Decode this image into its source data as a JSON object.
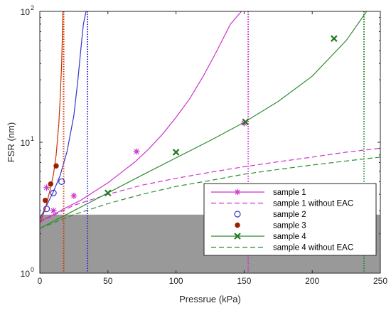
{
  "chart_data": {
    "type": "line",
    "title": "",
    "xlabel": "Pressrue (kPa)",
    "ylabel": "FSR (nm)",
    "xlim": [
      0,
      250
    ],
    "ylim": [
      1,
      100
    ],
    "yscale": "log",
    "grid": false,
    "legend_placement": "lower-right",
    "x_ticks": [
      0,
      50,
      100,
      150,
      200,
      250
    ],
    "x_tick_labels": [
      "0",
      "50",
      "100",
      "150",
      "200",
      "250"
    ],
    "y_ticks": [
      1,
      10,
      100
    ],
    "y_tick_labels": [
      "10",
      "10",
      "10"
    ],
    "y_tick_exponents": [
      "0",
      "1",
      "2"
    ],
    "shaded_band": {
      "y_from": 1,
      "y_to": 2.8,
      "color": "#999999"
    },
    "series": [
      {
        "name": "sample 1",
        "kind": "line",
        "color": "#cc33cc",
        "x": [
          0,
          10,
          20,
          30,
          40,
          50,
          60,
          70,
          80,
          90,
          100,
          110,
          120,
          130,
          140,
          148
        ],
        "y": [
          2.5,
          2.8,
          3.2,
          3.6,
          4.2,
          4.9,
          5.9,
          7.1,
          8.9,
          11.5,
          15.5,
          21.5,
          32,
          50,
          80,
          100
        ]
      },
      {
        "name": "sample 1",
        "kind": "marker",
        "marker": "asterisk",
        "color": "#cc33cc",
        "x": [
          5,
          10,
          25,
          71,
          150
        ],
        "y": [
          4.5,
          3.0,
          3.9,
          8.5,
          14.0
        ]
      },
      {
        "name": "sample 1 without EAC",
        "kind": "dashed",
        "color": "#cc33cc",
        "x": [
          0,
          25,
          50,
          75,
          100,
          125,
          150,
          175,
          200,
          225,
          250
        ],
        "y": [
          2.45,
          3.3,
          4.0,
          4.7,
          5.3,
          5.9,
          6.5,
          7.1,
          7.7,
          8.4,
          9.0
        ]
      },
      {
        "name": "sample 2",
        "kind": "line",
        "color": "#3333cc",
        "x": [
          0,
          5,
          10,
          15,
          20,
          25,
          28,
          30,
          32,
          34
        ],
        "y": [
          2.6,
          3.3,
          4.2,
          5.6,
          8.5,
          16,
          30,
          50,
          80,
          100
        ]
      },
      {
        "name": "sample 2",
        "kind": "marker",
        "marker": "circle",
        "color": "#3333cc",
        "x": [
          5,
          10,
          16
        ],
        "y": [
          3.1,
          4.1,
          5.0
        ]
      },
      {
        "name": "sample 3",
        "kind": "line",
        "color": "#cc3300",
        "x": [
          0,
          4,
          8,
          10,
          12,
          14,
          15,
          16,
          17
        ],
        "y": [
          2.4,
          3.1,
          4.5,
          5.7,
          8.0,
          14,
          22,
          40,
          100
        ]
      },
      {
        "name": "sample 3",
        "kind": "marker",
        "marker": "filled-circle",
        "color": "#992200",
        "x": [
          4,
          8,
          12
        ],
        "y": [
          3.6,
          4.8,
          6.6
        ]
      },
      {
        "name": "sample 4",
        "kind": "line",
        "color": "#2e8b2e",
        "x": [
          0,
          25,
          50,
          75,
          100,
          125,
          150,
          175,
          200,
          225,
          240
        ],
        "y": [
          2.2,
          3.0,
          4.1,
          5.6,
          7.6,
          10.3,
          14.2,
          20.5,
          32,
          60,
          100
        ]
      },
      {
        "name": "sample 4",
        "kind": "marker",
        "marker": "x",
        "color": "#1f7a1f",
        "x": [
          50,
          100,
          151,
          216
        ],
        "y": [
          4.1,
          8.4,
          14.3,
          62
        ]
      },
      {
        "name": "sample 4 without EAC",
        "kind": "dashed",
        "color": "#2e8b2e",
        "x": [
          0,
          25,
          50,
          75,
          100,
          125,
          150,
          175,
          200,
          225,
          250
        ],
        "y": [
          2.2,
          2.8,
          3.4,
          4.0,
          4.6,
          5.1,
          5.7,
          6.2,
          6.7,
          7.2,
          7.7
        ]
      }
    ],
    "vertical_lines": [
      {
        "x": 17.5,
        "color": "#cc3300"
      },
      {
        "x": 35,
        "color": "#3333cc"
      },
      {
        "x": 153,
        "color": "#cc33cc"
      },
      {
        "x": 238,
        "color": "#2e8b2e"
      }
    ],
    "legend": [
      {
        "label": "sample 1",
        "symbol": "line",
        "color": "#cc33cc"
      },
      {
        "label": "sample 1",
        "symbol": "asterisk",
        "color": "#cc33cc"
      },
      {
        "label": "sample 1 without EAC",
        "symbol": "dashed",
        "color": "#cc33cc"
      },
      {
        "label": "sample 2",
        "symbol": "circle",
        "color": "#3333cc"
      },
      {
        "label": "sample 3",
        "symbol": "filled-circle",
        "color": "#992200"
      },
      {
        "label": "sample 4",
        "symbol": "line",
        "color": "#2e8b2e"
      },
      {
        "label": "sample 4",
        "symbol": "x",
        "color": "#1f7a1f"
      },
      {
        "label": "sample 4 without EAC",
        "symbol": "dashed",
        "color": "#2e8b2e"
      }
    ]
  }
}
